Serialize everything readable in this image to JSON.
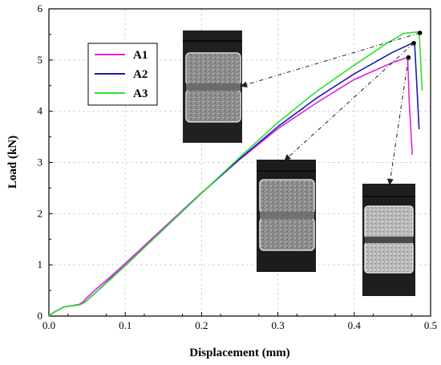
{
  "chart_data": {
    "type": "line",
    "xlabel": "Displacement (mm)",
    "ylabel": "Load (kN)",
    "xlim": [
      0.0,
      0.5
    ],
    "ylim": [
      0,
      6
    ],
    "xticks": [
      "0.0",
      "0.1",
      "0.2",
      "0.3",
      "0.4",
      "0.5"
    ],
    "yticks": [
      "0",
      "1",
      "2",
      "3",
      "4",
      "5",
      "6"
    ],
    "grid": true,
    "legend_position": "top-left",
    "series": [
      {
        "name": "A1",
        "color": "#e31ee3",
        "x": [
          0,
          0.005,
          0.01,
          0.015,
          0.02,
          0.03,
          0.04,
          0.045,
          0.05,
          0.06,
          0.08,
          0.1,
          0.15,
          0.2,
          0.25,
          0.3,
          0.35,
          0.4,
          0.45,
          0.47,
          0.472,
          0.476
        ],
        "y": [
          0,
          0.06,
          0.1,
          0.14,
          0.18,
          0.2,
          0.23,
          0.28,
          0.36,
          0.5,
          0.76,
          1.03,
          1.72,
          2.41,
          3.06,
          3.66,
          4.16,
          4.62,
          4.95,
          5.05,
          4.2,
          3.15
        ]
      },
      {
        "name": "A2",
        "color": "#1b1bb0",
        "x": [
          0,
          0.005,
          0.01,
          0.015,
          0.02,
          0.03,
          0.04,
          0.045,
          0.05,
          0.06,
          0.08,
          0.1,
          0.15,
          0.2,
          0.25,
          0.3,
          0.35,
          0.4,
          0.45,
          0.479,
          0.482,
          0.485
        ],
        "y": [
          0,
          0.06,
          0.1,
          0.14,
          0.18,
          0.2,
          0.22,
          0.25,
          0.31,
          0.44,
          0.72,
          0.99,
          1.69,
          2.4,
          3.07,
          3.7,
          4.25,
          4.73,
          5.15,
          5.35,
          4.5,
          3.65
        ]
      },
      {
        "name": "A3",
        "color": "#2ee02e",
        "x": [
          0,
          0.005,
          0.01,
          0.015,
          0.02,
          0.03,
          0.04,
          0.045,
          0.05,
          0.06,
          0.08,
          0.1,
          0.15,
          0.2,
          0.25,
          0.3,
          0.35,
          0.4,
          0.44,
          0.465,
          0.485,
          0.487,
          0.489
        ],
        "y": [
          0,
          0.06,
          0.1,
          0.14,
          0.18,
          0.2,
          0.22,
          0.25,
          0.31,
          0.44,
          0.71,
          0.98,
          1.69,
          2.4,
          3.1,
          3.78,
          4.38,
          4.9,
          5.3,
          5.52,
          5.55,
          5.0,
          4.4
        ]
      }
    ],
    "annotations": [
      {
        "kind": "photo-callout",
        "marker_x": 0.486,
        "marker_y": 5.53,
        "photo": "photo-upper"
      },
      {
        "kind": "photo-callout",
        "marker_x": 0.478,
        "marker_y": 5.33,
        "photo": "photo-middle"
      },
      {
        "kind": "photo-callout",
        "marker_x": 0.471,
        "marker_y": 5.05,
        "photo": "photo-lower"
      }
    ]
  }
}
